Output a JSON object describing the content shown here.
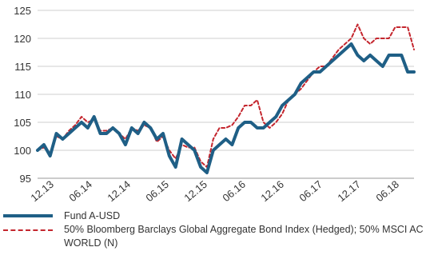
{
  "chart_data": {
    "type": "line",
    "x_ticks": [
      "12.13",
      "06.14",
      "12.14",
      "06.15",
      "12.15",
      "06.16",
      "12.16",
      "06.17",
      "12.17",
      "06.18"
    ],
    "ylim": [
      95,
      125
    ],
    "y_ticks": [
      95,
      100,
      105,
      110,
      115,
      120,
      125
    ],
    "grid": "horizontal",
    "legend_placement": "bottom",
    "series": [
      {
        "name": "Fund A-USD",
        "color": "#1f5f86",
        "style": "solid",
        "values": [
          100,
          101,
          99,
          103,
          102,
          103,
          104,
          105,
          104,
          106,
          103,
          103,
          104,
          103,
          101,
          104,
          103,
          105,
          104,
          102,
          103,
          99,
          97,
          102,
          101,
          100,
          97,
          96,
          100,
          101,
          102,
          101,
          104,
          105,
          105,
          104,
          104,
          105,
          106,
          108,
          109,
          110,
          112,
          113,
          114,
          114,
          115,
          116,
          117,
          118,
          119,
          117,
          116,
          117,
          116,
          115,
          117,
          117,
          117,
          114,
          114
        ]
      },
      {
        "name": "50% Bloomberg Barclays Global Aggregate Bond Index (Hedged); 50% MSCI AC WORLD (N)",
        "color": "#c4262e",
        "style": "dashed",
        "values": [
          100,
          100.5,
          99.5,
          102.5,
          102,
          103.5,
          104.5,
          106,
          105,
          105.5,
          103.5,
          103.5,
          104,
          103,
          102,
          104,
          103.5,
          104.5,
          104,
          101.5,
          102.5,
          100,
          98.5,
          101,
          100.5,
          100.5,
          98,
          97,
          102,
          104,
          104,
          104.5,
          106,
          108,
          108,
          109,
          105,
          104,
          105,
          106.5,
          109,
          110,
          111,
          112.5,
          114,
          115,
          115,
          116.5,
          118,
          119,
          120,
          122.5,
          120,
          119,
          120,
          120,
          120,
          122,
          122,
          122,
          118
        ]
      }
    ]
  }
}
